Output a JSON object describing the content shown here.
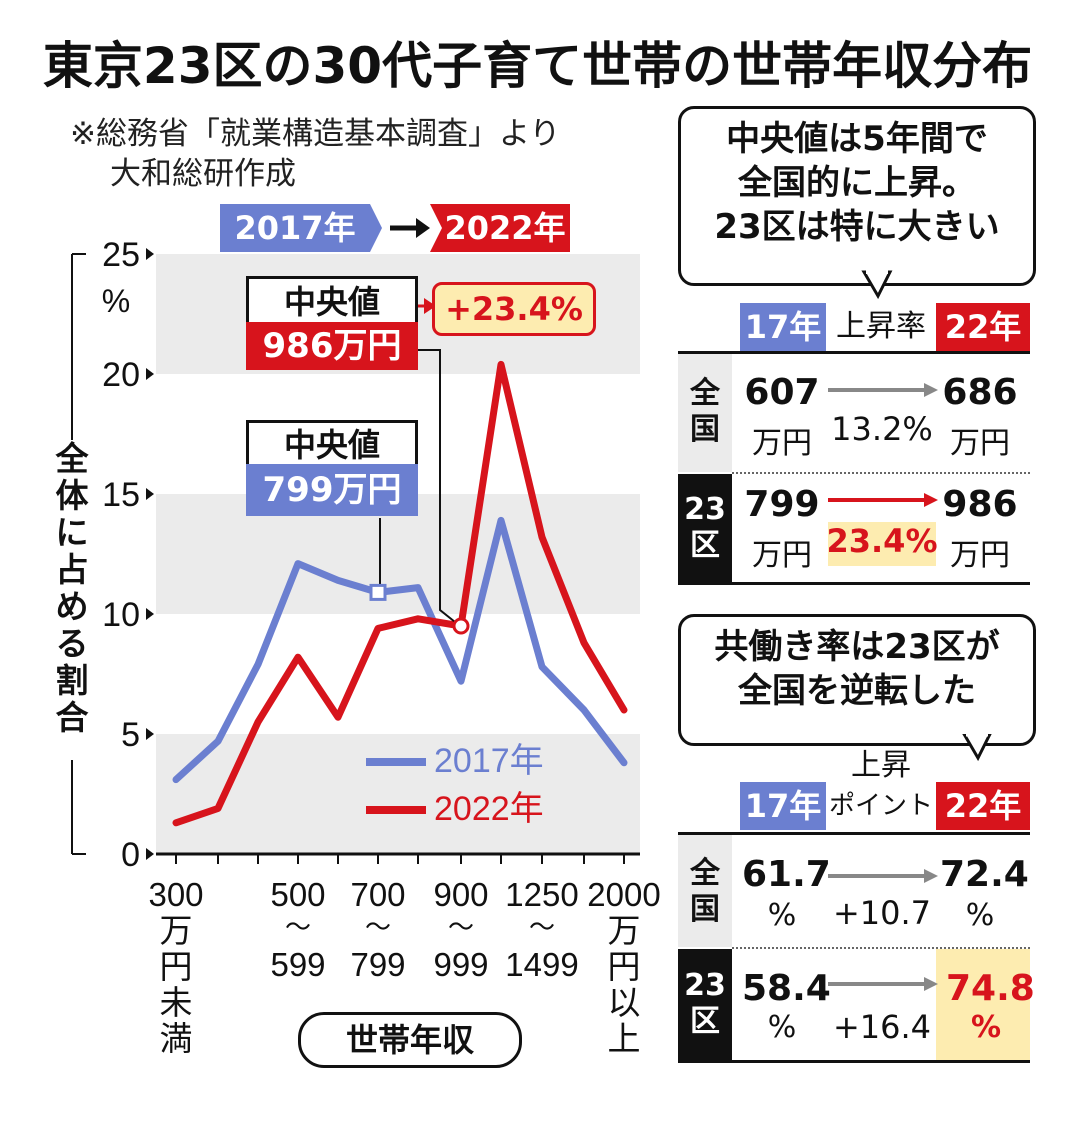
{
  "title": "東京23区の30代子育て世帯の世帯年収分布",
  "source_line1": "※総務省「就業構造基本調査」より",
  "source_line2": "大和総研作成",
  "period_from": "2017年",
  "period_to": "2022年",
  "colors": {
    "y2017": "#6b7fd0",
    "y2022": "#d7141c",
    "highlight": "#fdecb0",
    "band": "#ebebeb"
  },
  "median_2022": {
    "label": "中央値",
    "value": "986万円",
    "change": "+23.4%"
  },
  "median_2017": {
    "label": "中央値",
    "value": "799万円"
  },
  "chart_data": {
    "type": "line",
    "ylabel": "全体に占める割合",
    "yunit": "%",
    "ylim": [
      0,
      25
    ],
    "yticks": [
      "0",
      "5",
      "10",
      "15",
      "20",
      "25"
    ],
    "xlabel": "世帯年収",
    "xtick_labels": [
      {
        "top": "300",
        "stack": [
          "万",
          "円",
          "未",
          "満"
        ]
      },
      {
        "top": "500",
        "sep": "～",
        "bottom": "599"
      },
      {
        "top": "700",
        "sep": "～",
        "bottom": "799"
      },
      {
        "top": "900",
        "sep": "～",
        "bottom": "999"
      },
      {
        "top": "1250",
        "sep": "～",
        "bottom": "1499"
      },
      {
        "top": "2000",
        "stack": [
          "万",
          "円",
          "以",
          "上"
        ]
      }
    ],
    "series": [
      {
        "name": "2017年",
        "values": [
          3.1,
          4.7,
          7.9,
          12.1,
          11.4,
          10.9,
          11.1,
          7.2,
          13.9,
          7.8,
          6.0,
          3.8
        ]
      },
      {
        "name": "2022年",
        "values": [
          1.3,
          1.9,
          5.5,
          8.2,
          5.7,
          9.4,
          9.8,
          9.5,
          20.4,
          13.2,
          8.8,
          6.0
        ]
      }
    ],
    "grid": "alternating bands",
    "legend": "bottom-right"
  },
  "bubble1": [
    "中央値は5年間で",
    "全国的に上昇。",
    "23区は特に大きい"
  ],
  "table1": {
    "head_left": "17年",
    "head_mid": "上昇率",
    "head_right": "22年",
    "rows": [
      {
        "label": [
          "全",
          "国"
        ],
        "from": "607",
        "from_unit": "万円",
        "rate": "13.2%",
        "to": "686",
        "to_unit": "万円"
      },
      {
        "label": [
          "23",
          "区"
        ],
        "from": "799",
        "from_unit": "万円",
        "rate": "23.4%",
        "to": "986",
        "to_unit": "万円"
      }
    ]
  },
  "bubble2": [
    "共働き率は23区が",
    "全国を逆転した"
  ],
  "table2": {
    "head_left": "17年",
    "head_mid1": "上昇",
    "head_mid2": "ポイント",
    "head_right": "22年",
    "rows": [
      {
        "label": [
          "全",
          "国"
        ],
        "from": "61.7",
        "from_unit": "%",
        "rate": "+10.7",
        "to": "72.4",
        "to_unit": "%"
      },
      {
        "label": [
          "23",
          "区"
        ],
        "from": "58.4",
        "from_unit": "%",
        "rate": "+16.4",
        "to": "74.8",
        "to_unit": "%"
      }
    ]
  }
}
